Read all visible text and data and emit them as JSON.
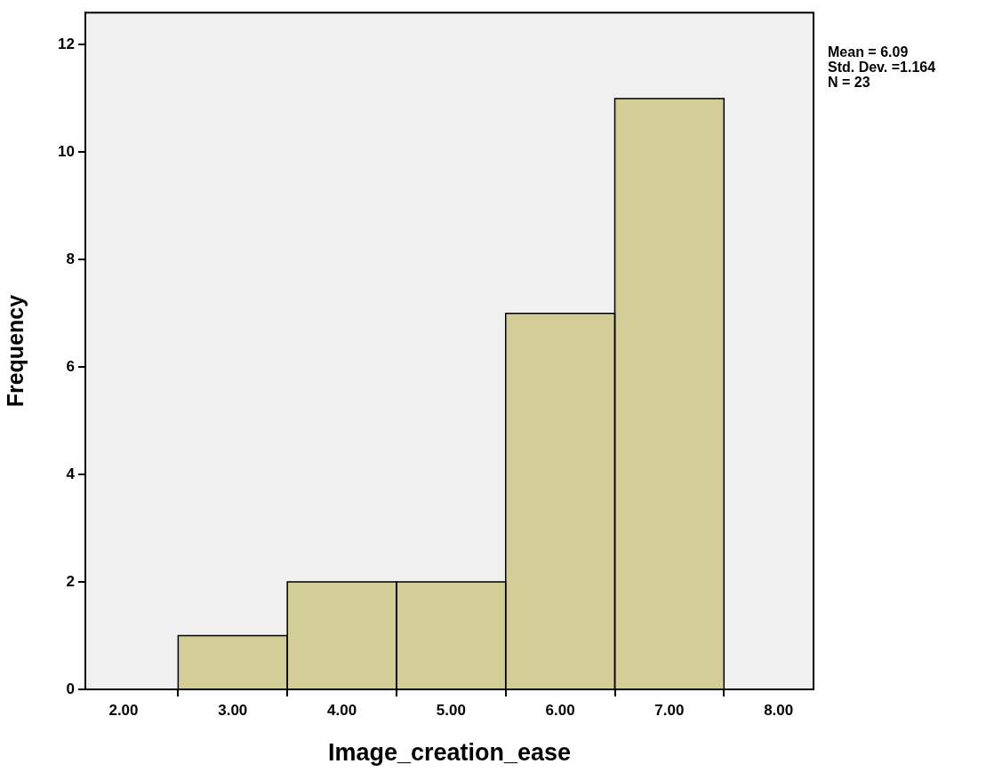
{
  "chart_data": {
    "type": "histogram",
    "xlabel": "Image_creation_ease",
    "ylabel": "Frequency",
    "bins": [
      2.5,
      3.5,
      4.5,
      5.5,
      6.5,
      7.5
    ],
    "values": [
      1,
      2,
      2,
      7,
      11
    ],
    "color": "#d3ce97",
    "xlim": [
      1.65,
      8.32
    ],
    "xticks": [
      {
        "value": 2,
        "label": "2.00"
      },
      {
        "value": 3,
        "label": "3.00"
      },
      {
        "value": 4,
        "label": "4.00"
      },
      {
        "value": 5,
        "label": "5.00"
      },
      {
        "value": 6,
        "label": "6.00"
      },
      {
        "value": 7,
        "label": "7.00"
      },
      {
        "value": 8,
        "label": "8.00"
      }
    ],
    "ylim": [
      0,
      12.6
    ],
    "yticks": [
      0,
      2,
      4,
      6,
      8,
      10,
      12
    ],
    "grid": false,
    "legend": false,
    "annotations": [
      "Mean = 6.09",
      "Std. Dev. =1.164",
      "N = 23"
    ]
  }
}
